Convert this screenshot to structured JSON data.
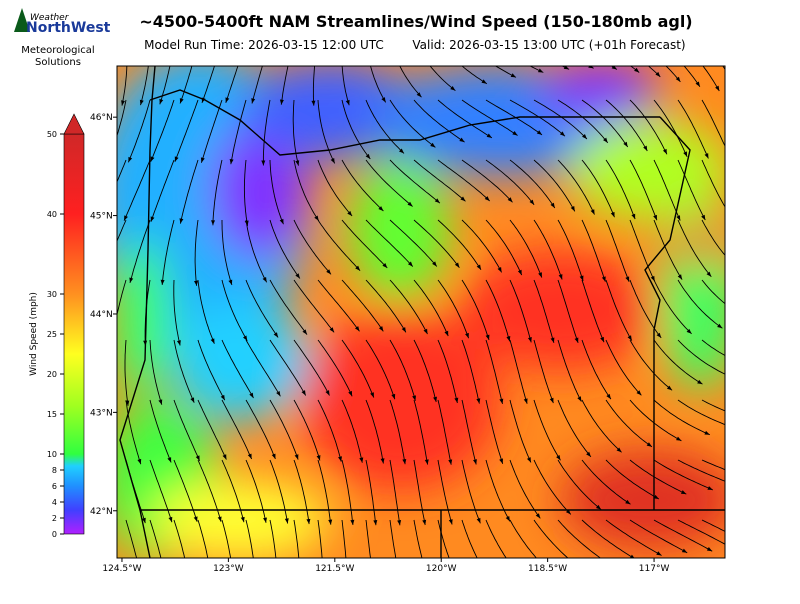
{
  "header": {
    "logo_top": "Weather",
    "logo_main": "NorthWest",
    "org_lines": [
      "Meteorological",
      "Solutions"
    ],
    "title": "~4500-5400ft NAM Streamlines/Wind Speed (150-180mb agl)",
    "model_run": "Model Run Time: 2026-03-15 12:00 UTC",
    "valid": "Valid: 2026-03-15 13:00 UTC  (+01h Forecast)"
  },
  "colorbar": {
    "label": "Wind Speed (mph)",
    "lim": [
      0,
      50
    ],
    "ticks": [
      0,
      2,
      4,
      6,
      8,
      10,
      15,
      20,
      25,
      30,
      40,
      50
    ],
    "extend": "max"
  },
  "map": {
    "xlim": [
      -124.57,
      -116.0
    ],
    "ylim": [
      41.52,
      46.52
    ],
    "xticks": [
      {
        "value": -124.5,
        "label": "124.5°W"
      },
      {
        "value": -123,
        "label": "123°W"
      },
      {
        "value": -121.5,
        "label": "121.5°W"
      },
      {
        "value": -120,
        "label": "120°W"
      },
      {
        "value": -118.5,
        "label": "118.5°W"
      },
      {
        "value": -117,
        "label": "117°W"
      }
    ],
    "yticks": [
      {
        "value": 42,
        "label": "42°N"
      },
      {
        "value": 43,
        "label": "43°N"
      },
      {
        "value": 44,
        "label": "44°N"
      },
      {
        "value": 45,
        "label": "45°N"
      },
      {
        "value": 46,
        "label": "46°N"
      }
    ]
  }
}
